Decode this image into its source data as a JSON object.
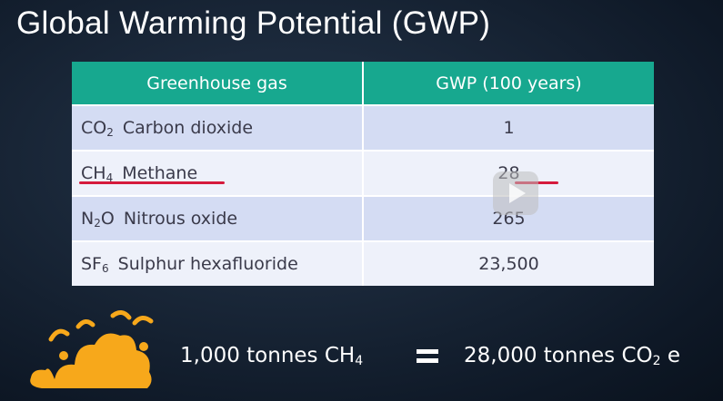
{
  "title": "Global Warming Potential  (GWP)",
  "table": {
    "headers": [
      "Greenhouse gas",
      "GWP (100 years)"
    ],
    "rows": [
      {
        "formula_base": "CO",
        "formula_sub": "2",
        "formula_tail": "",
        "name": "Carbon dioxide",
        "gwp": "1"
      },
      {
        "formula_base": "CH",
        "formula_sub": "4",
        "formula_tail": "",
        "name": "Methane",
        "gwp": "28"
      },
      {
        "formula_base": "N",
        "formula_sub": "2",
        "formula_tail": "O",
        "name": "Nitrous oxide",
        "gwp": "265"
      },
      {
        "formula_base": "SF",
        "formula_sub": "6",
        "formula_tail": "",
        "name": "Sulphur hexafluoride",
        "gwp": "23,500"
      }
    ]
  },
  "equation": {
    "left_text": "1,000 tonnes CH",
    "left_sub": "4",
    "right_text": "28,000 tonnes CO",
    "right_sub": "2",
    "right_suffix": " e"
  },
  "colors": {
    "header_bg": "#17a88f",
    "highlight_underline": "#d51a3c",
    "cloud": "#f7a81b"
  },
  "icons": [
    "play-icon",
    "cloud-icon",
    "equals-icon"
  ]
}
